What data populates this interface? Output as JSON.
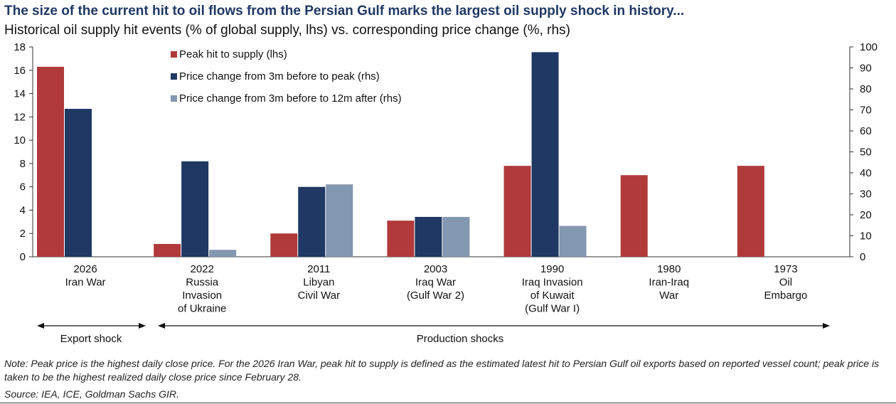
{
  "header": {
    "title": "The size of the current hit to oil flows from the Persian Gulf marks the largest oil supply shock in history...",
    "subtitle": "Historical oil supply hit events (% of global supply, lhs) vs. corresponding price change (%, rhs)"
  },
  "footer": {
    "note": "Note: Peak price is the highest daily close price. For the 2026 Iran War, peak hit to supply is defined as the estimated latest hit to Persian Gulf oil exports based on reported vessel count; peak price is taken to be the highest realized daily close price since February 28.",
    "source": "Source: IEA, ICE, Goldman Sachs GIR."
  },
  "chart_data": {
    "type": "bar",
    "categories": [
      [
        "2026",
        "Iran War"
      ],
      [
        "2022",
        "Russia",
        "Invasion",
        "of Ukraine"
      ],
      [
        "2011",
        "Libyan",
        "Civil War"
      ],
      [
        "2003",
        "Iraq War",
        "(Gulf War 2)"
      ],
      [
        "1990",
        "Iraq Invasion",
        "of Kuwait",
        "(Gulf War I)"
      ],
      [
        "1980",
        "Iran-Iraq",
        "War"
      ],
      [
        "1973",
        "Oil",
        "Embargo"
      ]
    ],
    "series": [
      {
        "name": "Peak hit to supply (lhs)",
        "axis": "left",
        "color": "#b03a3a",
        "values": [
          16.3,
          1.1,
          2.0,
          3.1,
          7.8,
          7.0,
          7.8
        ]
      },
      {
        "name": "Price change from 3m before to peak (rhs)",
        "axis": "right",
        "color": "#1f3864",
        "values": [
          70.5,
          45.5,
          33.3,
          19.0,
          97.5,
          null,
          null
        ]
      },
      {
        "name": "Price change from 3m before to 12m after (rhs)",
        "axis": "right",
        "color": "#8497b0",
        "values": [
          null,
          3.3,
          34.5,
          19.0,
          14.7,
          null,
          null
        ]
      }
    ],
    "left_axis": {
      "min": 0,
      "max": 18,
      "ticks": [
        0,
        2,
        4,
        6,
        8,
        10,
        12,
        14,
        16,
        18
      ]
    },
    "right_axis": {
      "min": 0,
      "max": 100,
      "ticks": [
        0,
        10,
        20,
        30,
        40,
        50,
        60,
        70,
        80,
        90,
        100
      ]
    },
    "legend_position": "top-left",
    "grid": false,
    "annotations": [
      {
        "label": "Export shock",
        "span": "2026"
      },
      {
        "label": "Production shocks",
        "span": "2022-1973"
      }
    ]
  }
}
